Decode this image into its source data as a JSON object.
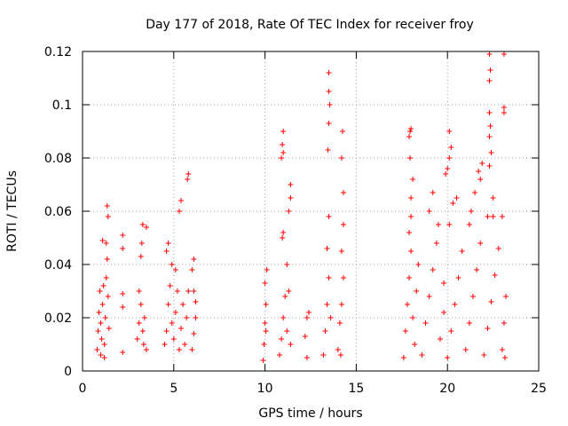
{
  "colors": {
    "series": "#ff0000",
    "frame": "#000000",
    "grid": "#a0a0a0",
    "background": "#ffffff"
  },
  "chart_data": {
    "type": "scatter",
    "title": "Day 177 of 2018, Rate Of TEC Index for receiver froy",
    "xlabel": "GPS time / hours",
    "ylabel": "ROTI / TECUs",
    "xlim": [
      0,
      25
    ],
    "ylim": [
      0,
      0.12
    ],
    "grid": true,
    "legend": "none",
    "x_ticks": [
      0,
      5,
      10,
      15,
      20,
      25
    ],
    "x_tick_labels": [
      "0",
      "5",
      "10",
      "15",
      "20",
      "25"
    ],
    "y_ticks": [
      0,
      0.02,
      0.04,
      0.06,
      0.08,
      0.1,
      0.12
    ],
    "y_tick_labels": [
      "0",
      "0.02",
      "0.04",
      "0.06",
      "0.08",
      "0.1",
      "0.12"
    ],
    "series": [
      {
        "name": "ROTI",
        "marker": "plus",
        "points": [
          [
            0.8,
            0.008
          ],
          [
            0.85,
            0.015
          ],
          [
            0.9,
            0.022
          ],
          [
            0.95,
            0.03
          ],
          [
            1.0,
            0.018
          ],
          [
            1.05,
            0.012
          ],
          [
            1.1,
            0.025
          ],
          [
            1.15,
            0.032
          ],
          [
            1.2,
            0.01
          ],
          [
            1.25,
            0.02
          ],
          [
            1.3,
            0.035
          ],
          [
            1.35,
            0.042
          ],
          [
            1.4,
            0.028
          ],
          [
            1.45,
            0.016
          ],
          [
            1.1,
            0.049
          ],
          [
            1.3,
            0.048
          ],
          [
            1.4,
            0.058
          ],
          [
            1.35,
            0.062
          ],
          [
            1.0,
            0.006
          ],
          [
            1.2,
            0.005
          ],
          [
            2.2,
            0.051
          ],
          [
            2.2,
            0.046
          ],
          [
            2.2,
            0.029
          ],
          [
            2.2,
            0.024
          ],
          [
            2.2,
            0.007
          ],
          [
            3.0,
            0.012
          ],
          [
            3.1,
            0.018
          ],
          [
            3.2,
            0.025
          ],
          [
            3.3,
            0.015
          ],
          [
            3.35,
            0.01
          ],
          [
            3.1,
            0.03
          ],
          [
            3.2,
            0.043
          ],
          [
            3.25,
            0.048
          ],
          [
            3.3,
            0.055
          ],
          [
            3.5,
            0.054
          ],
          [
            3.4,
            0.02
          ],
          [
            3.5,
            0.008
          ],
          [
            4.5,
            0.01
          ],
          [
            4.6,
            0.015
          ],
          [
            4.7,
            0.025
          ],
          [
            4.8,
            0.032
          ],
          [
            4.9,
            0.018
          ],
          [
            5.0,
            0.012
          ],
          [
            5.1,
            0.022
          ],
          [
            5.2,
            0.03
          ],
          [
            5.3,
            0.008
          ],
          [
            5.4,
            0.016
          ],
          [
            5.5,
            0.025
          ],
          [
            5.6,
            0.01
          ],
          [
            5.7,
            0.02
          ],
          [
            5.8,
            0.03
          ],
          [
            4.6,
            0.045
          ],
          [
            4.7,
            0.048
          ],
          [
            4.9,
            0.04
          ],
          [
            5.1,
            0.038
          ],
          [
            5.3,
            0.06
          ],
          [
            5.4,
            0.064
          ],
          [
            5.75,
            0.072
          ],
          [
            5.8,
            0.074
          ],
          [
            6.0,
            0.008
          ],
          [
            6.1,
            0.014
          ],
          [
            6.2,
            0.02
          ],
          [
            6.1,
            0.03
          ],
          [
            6.0,
            0.038
          ],
          [
            6.1,
            0.042
          ],
          [
            6.2,
            0.026
          ],
          [
            9.9,
            0.004
          ],
          [
            9.95,
            0.01
          ],
          [
            10.0,
            0.018
          ],
          [
            10.05,
            0.025
          ],
          [
            10.0,
            0.033
          ],
          [
            10.1,
            0.038
          ],
          [
            10.05,
            0.015
          ],
          [
            10.8,
            0.006
          ],
          [
            10.9,
            0.012
          ],
          [
            11.0,
            0.02
          ],
          [
            11.1,
            0.028
          ],
          [
            11.2,
            0.015
          ],
          [
            11.3,
            0.03
          ],
          [
            11.4,
            0.01
          ],
          [
            10.95,
            0.05
          ],
          [
            11.0,
            0.052
          ],
          [
            10.9,
            0.08
          ],
          [
            11.0,
            0.082
          ],
          [
            10.95,
            0.085
          ],
          [
            11.0,
            0.09
          ],
          [
            11.3,
            0.06
          ],
          [
            11.4,
            0.065
          ],
          [
            11.4,
            0.07
          ],
          [
            11.2,
            0.04
          ],
          [
            12.2,
            0.013
          ],
          [
            12.3,
            0.02
          ],
          [
            12.3,
            0.005
          ],
          [
            12.4,
            0.022
          ],
          [
            13.2,
            0.006
          ],
          [
            13.3,
            0.015
          ],
          [
            13.4,
            0.025
          ],
          [
            13.5,
            0.035
          ],
          [
            13.6,
            0.02
          ],
          [
            13.4,
            0.046
          ],
          [
            13.5,
            0.058
          ],
          [
            13.45,
            0.083
          ],
          [
            13.5,
            0.093
          ],
          [
            13.55,
            0.1
          ],
          [
            13.5,
            0.105
          ],
          [
            13.5,
            0.112
          ],
          [
            14.0,
            0.008
          ],
          [
            14.1,
            0.018
          ],
          [
            14.2,
            0.025
          ],
          [
            14.3,
            0.035
          ],
          [
            14.2,
            0.045
          ],
          [
            14.3,
            0.055
          ],
          [
            14.3,
            0.067
          ],
          [
            14.2,
            0.08
          ],
          [
            14.25,
            0.09
          ],
          [
            14.15,
            0.006
          ],
          [
            17.6,
            0.005
          ],
          [
            17.7,
            0.015
          ],
          [
            17.8,
            0.025
          ],
          [
            17.9,
            0.035
          ],
          [
            18.0,
            0.045
          ],
          [
            18.1,
            0.02
          ],
          [
            18.2,
            0.01
          ],
          [
            18.3,
            0.03
          ],
          [
            18.4,
            0.04
          ],
          [
            17.9,
            0.052
          ],
          [
            18.0,
            0.058
          ],
          [
            18.0,
            0.065
          ],
          [
            18.1,
            0.072
          ],
          [
            17.95,
            0.08
          ],
          [
            17.9,
            0.088
          ],
          [
            17.95,
            0.09
          ],
          [
            18.0,
            0.091
          ],
          [
            18.6,
            0.006
          ],
          [
            18.8,
            0.018
          ],
          [
            19.0,
            0.028
          ],
          [
            19.2,
            0.038
          ],
          [
            19.4,
            0.048
          ],
          [
            19.6,
            0.012
          ],
          [
            19.8,
            0.022
          ],
          [
            19.0,
            0.06
          ],
          [
            19.2,
            0.067
          ],
          [
            19.5,
            0.055
          ],
          [
            19.8,
            0.033
          ],
          [
            20.0,
            0.005
          ],
          [
            20.2,
            0.015
          ],
          [
            20.4,
            0.025
          ],
          [
            20.6,
            0.035
          ],
          [
            20.8,
            0.045
          ],
          [
            20.1,
            0.055
          ],
          [
            20.3,
            0.063
          ],
          [
            20.0,
            0.076
          ],
          [
            20.1,
            0.08
          ],
          [
            20.2,
            0.084
          ],
          [
            20.1,
            0.09
          ],
          [
            19.9,
            0.074
          ],
          [
            20.5,
            0.065
          ],
          [
            21.0,
            0.008
          ],
          [
            21.2,
            0.018
          ],
          [
            21.4,
            0.028
          ],
          [
            21.6,
            0.038
          ],
          [
            21.8,
            0.048
          ],
          [
            21.3,
            0.06
          ],
          [
            21.5,
            0.067
          ],
          [
            21.7,
            0.075
          ],
          [
            21.8,
            0.072
          ],
          [
            21.9,
            0.078
          ],
          [
            21.2,
            0.055
          ],
          [
            22.0,
            0.006
          ],
          [
            22.2,
            0.016
          ],
          [
            22.4,
            0.026
          ],
          [
            22.6,
            0.036
          ],
          [
            22.8,
            0.046
          ],
          [
            22.2,
            0.058
          ],
          [
            22.5,
            0.065
          ],
          [
            22.3,
            0.077
          ],
          [
            22.4,
            0.082
          ],
          [
            22.3,
            0.088
          ],
          [
            22.35,
            0.092
          ],
          [
            22.3,
            0.097
          ],
          [
            22.3,
            0.109
          ],
          [
            22.35,
            0.113
          ],
          [
            22.3,
            0.119
          ],
          [
            22.5,
            0.058
          ],
          [
            23.0,
            0.008
          ],
          [
            23.1,
            0.018
          ],
          [
            23.2,
            0.028
          ],
          [
            23.0,
            0.058
          ],
          [
            23.1,
            0.097
          ],
          [
            23.1,
            0.099
          ],
          [
            23.1,
            0.119
          ],
          [
            23.15,
            0.005
          ]
        ]
      }
    ]
  }
}
